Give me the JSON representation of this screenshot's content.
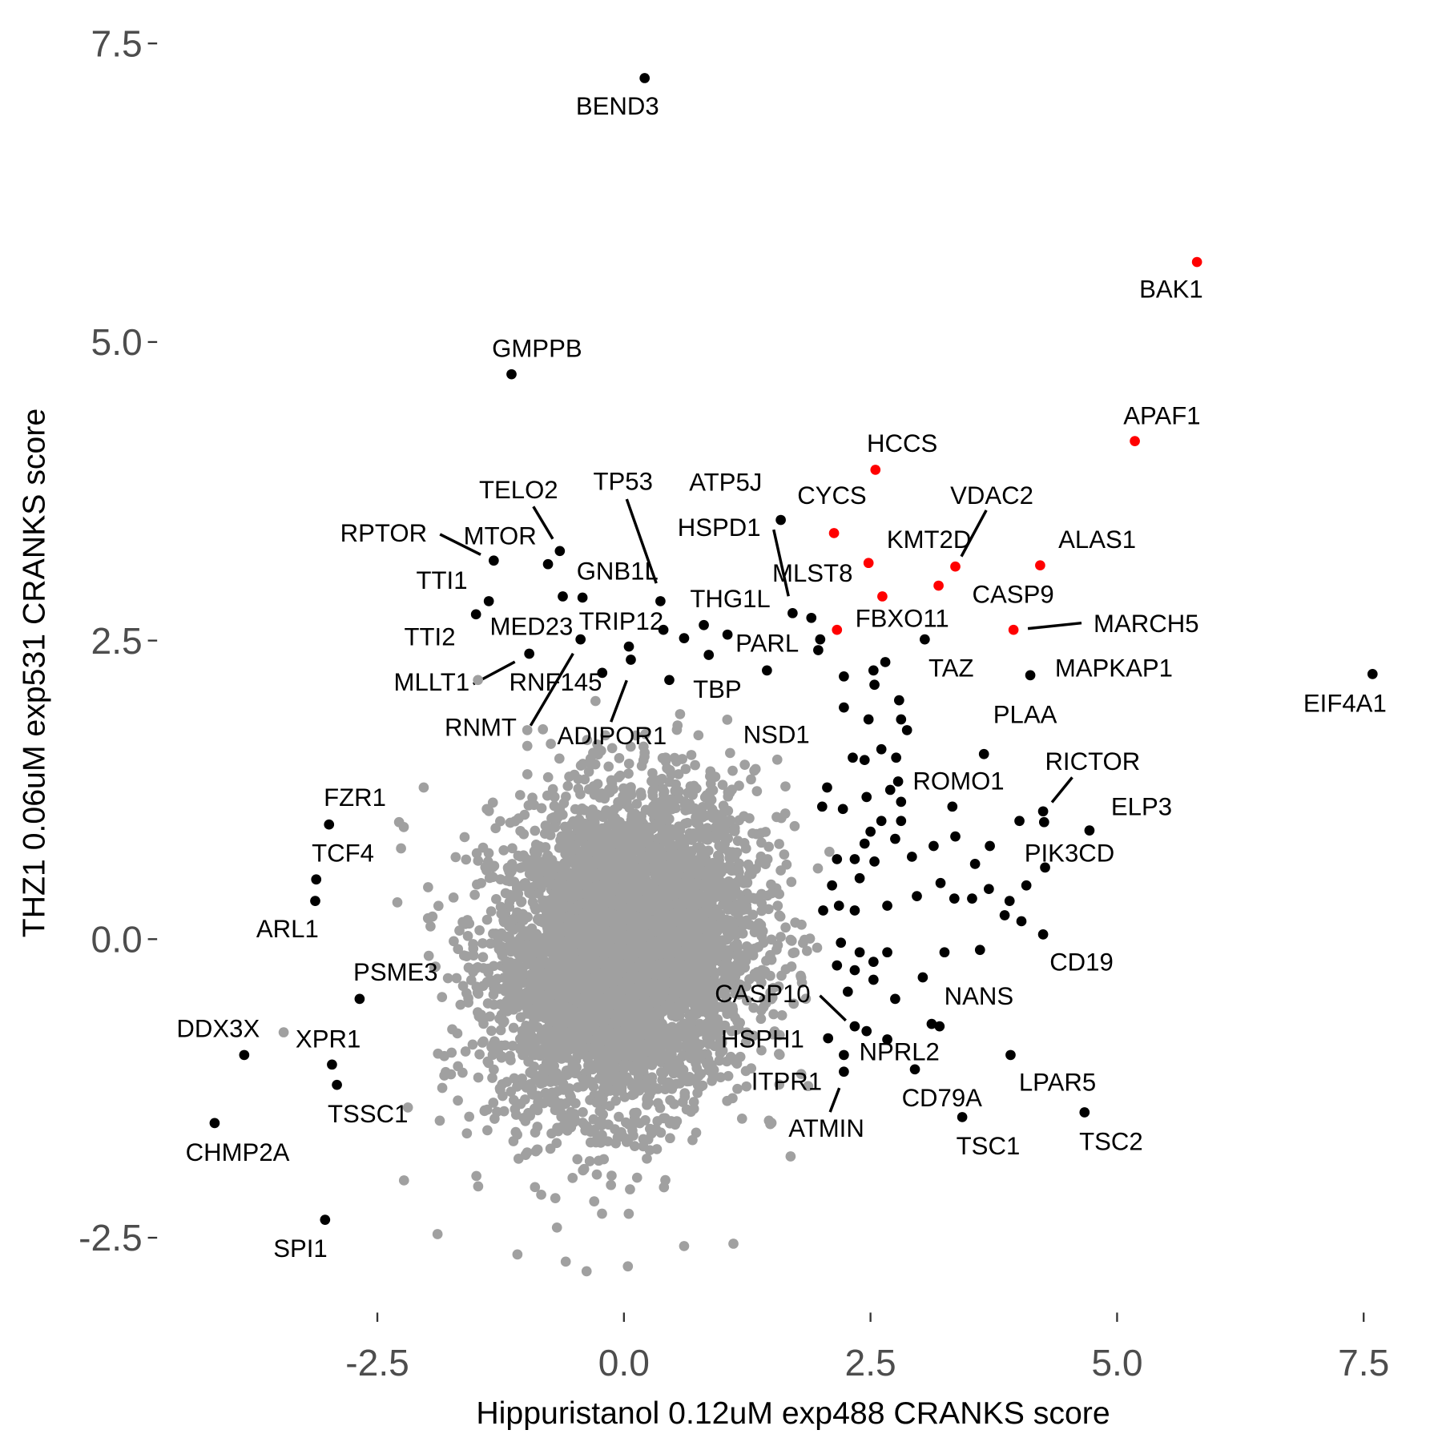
{
  "chart_data": {
    "type": "scatter",
    "title": "",
    "xlabel": "Hippuristanol 0.12uM exp488 CRANKS score",
    "ylabel": "THZ1 0.06uM exp531 CRANKS score",
    "xlim": [
      -4.3,
      7.8
    ],
    "ylim": [
      -2.95,
      7.55
    ],
    "xticks": [
      -2.5,
      0.0,
      2.5,
      5.0,
      7.5
    ],
    "xtick_labels": [
      "-2.5",
      "0.0",
      "2.5",
      "5.0",
      "7.5"
    ],
    "yticks": [
      -2.5,
      0.0,
      2.5,
      5.0,
      7.5
    ],
    "ytick_labels": [
      "-2.5",
      "0.0",
      "2.5",
      "5.0",
      "7.5"
    ],
    "grid": false,
    "legend": "none",
    "colors": {
      "red": "#FF0000",
      "black": "#000000",
      "grey": "#A0A0A0"
    },
    "background_cloud": {
      "color": "grey",
      "n": 5000,
      "mean_x": 0.0,
      "mean_y": -0.1,
      "sd_x": 0.66,
      "sd_y": 0.66,
      "rho": 0.15,
      "x_range": [
        -2.3,
        2.1
      ],
      "y_range": [
        -2.8,
        2.0
      ]
    },
    "labeled_points": [
      {
        "label": "BEND3",
        "x": 0.21,
        "y": 7.21,
        "color": "black"
      },
      {
        "label": "BAK1",
        "x": 5.81,
        "y": 5.67,
        "color": "red"
      },
      {
        "label": "GMPPB",
        "x": -1.14,
        "y": 4.73,
        "color": "black"
      },
      {
        "label": "APAF1",
        "x": 5.18,
        "y": 4.17,
        "color": "red"
      },
      {
        "label": "HCCS",
        "x": 2.55,
        "y": 3.93,
        "color": "red"
      },
      {
        "label": "ATP5J",
        "x": 1.59,
        "y": 3.51,
        "color": "black"
      },
      {
        "label": "CYCS",
        "x": 2.13,
        "y": 3.4,
        "color": "red"
      },
      {
        "label": "TELO2",
        "x": -0.65,
        "y": 3.25,
        "color": "black"
      },
      {
        "label": "MTOR",
        "x": -0.77,
        "y": 3.14,
        "color": "black"
      },
      {
        "label": "RPTOR",
        "x": -1.32,
        "y": 3.17,
        "color": "black"
      },
      {
        "label": "KMT2D",
        "x": 2.48,
        "y": 3.15,
        "color": "red"
      },
      {
        "label": "VDAC2",
        "x": 3.36,
        "y": 3.12,
        "color": "red"
      },
      {
        "label": "ALAS1",
        "x": 4.22,
        "y": 3.13,
        "color": "red"
      },
      {
        "label": "TTI1",
        "x": -1.37,
        "y": 2.83,
        "color": "black"
      },
      {
        "label": "GNB1L",
        "x": -0.42,
        "y": 2.86,
        "color": "black"
      },
      {
        "label": "CASP9",
        "x": 3.19,
        "y": 2.96,
        "color": "red"
      },
      {
        "label": "MLST8",
        "x": 2.62,
        "y": 2.87,
        "color": "red"
      },
      {
        "label": "TP53",
        "x": 0.37,
        "y": 2.83,
        "color": "black"
      },
      {
        "label": "TTI2",
        "x": -1.5,
        "y": 2.72,
        "color": "black"
      },
      {
        "label": "THG1L",
        "x": 0.81,
        "y": 2.63,
        "color": "black"
      },
      {
        "label": "HSPD1",
        "x": 1.71,
        "y": 2.73,
        "color": "black"
      },
      {
        "label": "MARCH5",
        "x": 3.95,
        "y": 2.59,
        "color": "red"
      },
      {
        "label": "FBXO11",
        "x": 2.16,
        "y": 2.59,
        "color": "red"
      },
      {
        "label": "PARL",
        "x": 1.99,
        "y": 2.51,
        "color": "black"
      },
      {
        "label": "TRIP12",
        "x": -0.44,
        "y": 2.51,
        "color": "black"
      },
      {
        "label": "MED23",
        "x": -0.96,
        "y": 2.39,
        "color": "black"
      },
      {
        "label": "TAZ",
        "x": 3.05,
        "y": 2.51,
        "color": "black"
      },
      {
        "label": "MAPKAP1",
        "x": 4.12,
        "y": 2.21,
        "color": "black"
      },
      {
        "label": "MLLT1",
        "x": -1.48,
        "y": 2.17,
        "color": "grey"
      },
      {
        "label": "RNF145",
        "x": -0.22,
        "y": 2.23,
        "color": "black"
      },
      {
        "label": "ADIPOR1",
        "x": 0.07,
        "y": 2.34,
        "color": "black"
      },
      {
        "label": "TBP",
        "x": 0.46,
        "y": 2.17,
        "color": "black"
      },
      {
        "label": "EIF4A1",
        "x": 7.59,
        "y": 2.22,
        "color": "black"
      },
      {
        "label": "RNMT",
        "x": -0.98,
        "y": 1.75,
        "color": "grey"
      },
      {
        "label": "NSD1",
        "x": 1.45,
        "y": 2.25,
        "color": "black"
      },
      {
        "label": "PLAA",
        "x": 3.65,
        "y": 1.55,
        "color": "black"
      },
      {
        "label": "RICTOR",
        "x": 4.25,
        "y": 1.07,
        "color": "black"
      },
      {
        "label": "ROMO1",
        "x": 3.33,
        "y": 1.11,
        "color": "black"
      },
      {
        "label": "ELP3",
        "x": 4.72,
        "y": 0.91,
        "color": "black"
      },
      {
        "label": "PIK3CD",
        "x": 4.27,
        "y": 0.6,
        "color": "black"
      },
      {
        "label": "FZR1",
        "x": -2.99,
        "y": 0.96,
        "color": "black"
      },
      {
        "label": "TCF4",
        "x": -3.12,
        "y": 0.5,
        "color": "black"
      },
      {
        "label": "ARL1",
        "x": -3.13,
        "y": 0.32,
        "color": "black"
      },
      {
        "label": "CD19",
        "x": 4.25,
        "y": 0.04,
        "color": "black"
      },
      {
        "label": "PSME3",
        "x": -2.68,
        "y": -0.5,
        "color": "black"
      },
      {
        "label": "CASP10",
        "x": 2.34,
        "y": -0.73,
        "color": "black"
      },
      {
        "label": "NANS",
        "x": 3.2,
        "y": -0.73,
        "color": "black"
      },
      {
        "label": "DDX3X",
        "x": -3.85,
        "y": -0.97,
        "color": "black"
      },
      {
        "label": "XPR1",
        "x": -2.96,
        "y": -1.05,
        "color": "black"
      },
      {
        "label": "HSPH1",
        "x": 2.07,
        "y": -0.83,
        "color": "black"
      },
      {
        "label": "NPRL2",
        "x": 2.46,
        "y": -0.77,
        "color": "black"
      },
      {
        "label": "LPAR5",
        "x": 3.92,
        "y": -0.97,
        "color": "black"
      },
      {
        "label": "ITPR1",
        "x": 2.23,
        "y": -0.97,
        "color": "black"
      },
      {
        "label": "CD79A",
        "x": 2.95,
        "y": -1.09,
        "color": "black"
      },
      {
        "label": "TSSC1",
        "x": -2.91,
        "y": -1.22,
        "color": "black"
      },
      {
        "label": "ATMIN",
        "x": 2.23,
        "y": -1.11,
        "color": "black"
      },
      {
        "label": "TSC1",
        "x": 3.43,
        "y": -1.49,
        "color": "black"
      },
      {
        "label": "TSC2",
        "x": 4.67,
        "y": -1.45,
        "color": "black"
      },
      {
        "label": "CHMP2A",
        "x": -4.15,
        "y": -1.54,
        "color": "black"
      },
      {
        "label": "SPI1",
        "x": -3.03,
        "y": -2.35,
        "color": "black"
      }
    ],
    "unlabeled_black_points": [
      [
        -0.62,
        2.87
      ],
      [
        0.61,
        2.52
      ],
      [
        0.4,
        2.59
      ],
      [
        0.86,
        2.38
      ],
      [
        1.05,
        2.55
      ],
      [
        0.05,
        2.45
      ],
      [
        1.9,
        2.69
      ],
      [
        1.97,
        2.42
      ],
      [
        2.23,
        2.2
      ],
      [
        2.53,
        2.25
      ],
      [
        2.54,
        2.13
      ],
      [
        2.65,
        2.32
      ],
      [
        2.23,
        1.94
      ],
      [
        2.48,
        1.84
      ],
      [
        2.61,
        1.59
      ],
      [
        2.79,
        2.0
      ],
      [
        2.81,
        1.84
      ],
      [
        2.87,
        1.75
      ],
      [
        2.32,
        1.52
      ],
      [
        2.44,
        1.5
      ],
      [
        2.76,
        1.52
      ],
      [
        2.78,
        1.32
      ],
      [
        2.06,
        1.27
      ],
      [
        2.46,
        1.19
      ],
      [
        2.7,
        1.25
      ],
      [
        2.81,
        1.15
      ],
      [
        2.01,
        1.11
      ],
      [
        2.22,
        1.09
      ],
      [
        2.61,
        0.99
      ],
      [
        2.81,
        0.99
      ],
      [
        2.5,
        0.9
      ],
      [
        2.75,
        0.84
      ],
      [
        2.44,
        0.8
      ],
      [
        2.16,
        0.67
      ],
      [
        2.34,
        0.67
      ],
      [
        2.54,
        0.65
      ],
      [
        2.92,
        0.69
      ],
      [
        3.14,
        0.78
      ],
      [
        3.36,
        0.86
      ],
      [
        3.56,
        0.63
      ],
      [
        3.71,
        0.78
      ],
      [
        4.01,
        0.99
      ],
      [
        4.26,
        0.98
      ],
      [
        2.11,
        0.45
      ],
      [
        2.39,
        0.51
      ],
      [
        2.67,
        0.28
      ],
      [
        2.97,
        0.36
      ],
      [
        3.21,
        0.47
      ],
      [
        3.35,
        0.34
      ],
      [
        3.53,
        0.34
      ],
      [
        3.7,
        0.42
      ],
      [
        3.86,
        0.2
      ],
      [
        3.91,
        0.32
      ],
      [
        4.03,
        0.15
      ],
      [
        4.08,
        0.45
      ],
      [
        2.02,
        0.24
      ],
      [
        2.18,
        0.28
      ],
      [
        2.34,
        0.24
      ],
      [
        2.2,
        -0.03
      ],
      [
        2.39,
        -0.11
      ],
      [
        2.53,
        -0.19
      ],
      [
        2.67,
        -0.11
      ],
      [
        3.25,
        -0.11
      ],
      [
        3.61,
        -0.09
      ],
      [
        2.16,
        -0.22
      ],
      [
        2.34,
        -0.26
      ],
      [
        2.53,
        -0.34
      ],
      [
        2.75,
        -0.5
      ],
      [
        3.03,
        -0.32
      ],
      [
        2.27,
        -0.44
      ],
      [
        2.67,
        -0.84
      ],
      [
        3.12,
        -0.71
      ]
    ],
    "unlabeled_grey_outliers": [
      [
        -3.45,
        -0.78
      ],
      [
        -2.03,
        1.27
      ],
      [
        -2.28,
        0.98
      ],
      [
        -2.26,
        0.76
      ],
      [
        -2.23,
        -2.02
      ],
      [
        -1.89,
        -2.47
      ],
      [
        -1.08,
        -2.64
      ],
      [
        -0.59,
        -2.7
      ],
      [
        0.04,
        -2.74
      ],
      [
        0.61,
        -2.57
      ],
      [
        1.11,
        -2.55
      ],
      [
        1.47,
        -1.52
      ]
    ]
  }
}
